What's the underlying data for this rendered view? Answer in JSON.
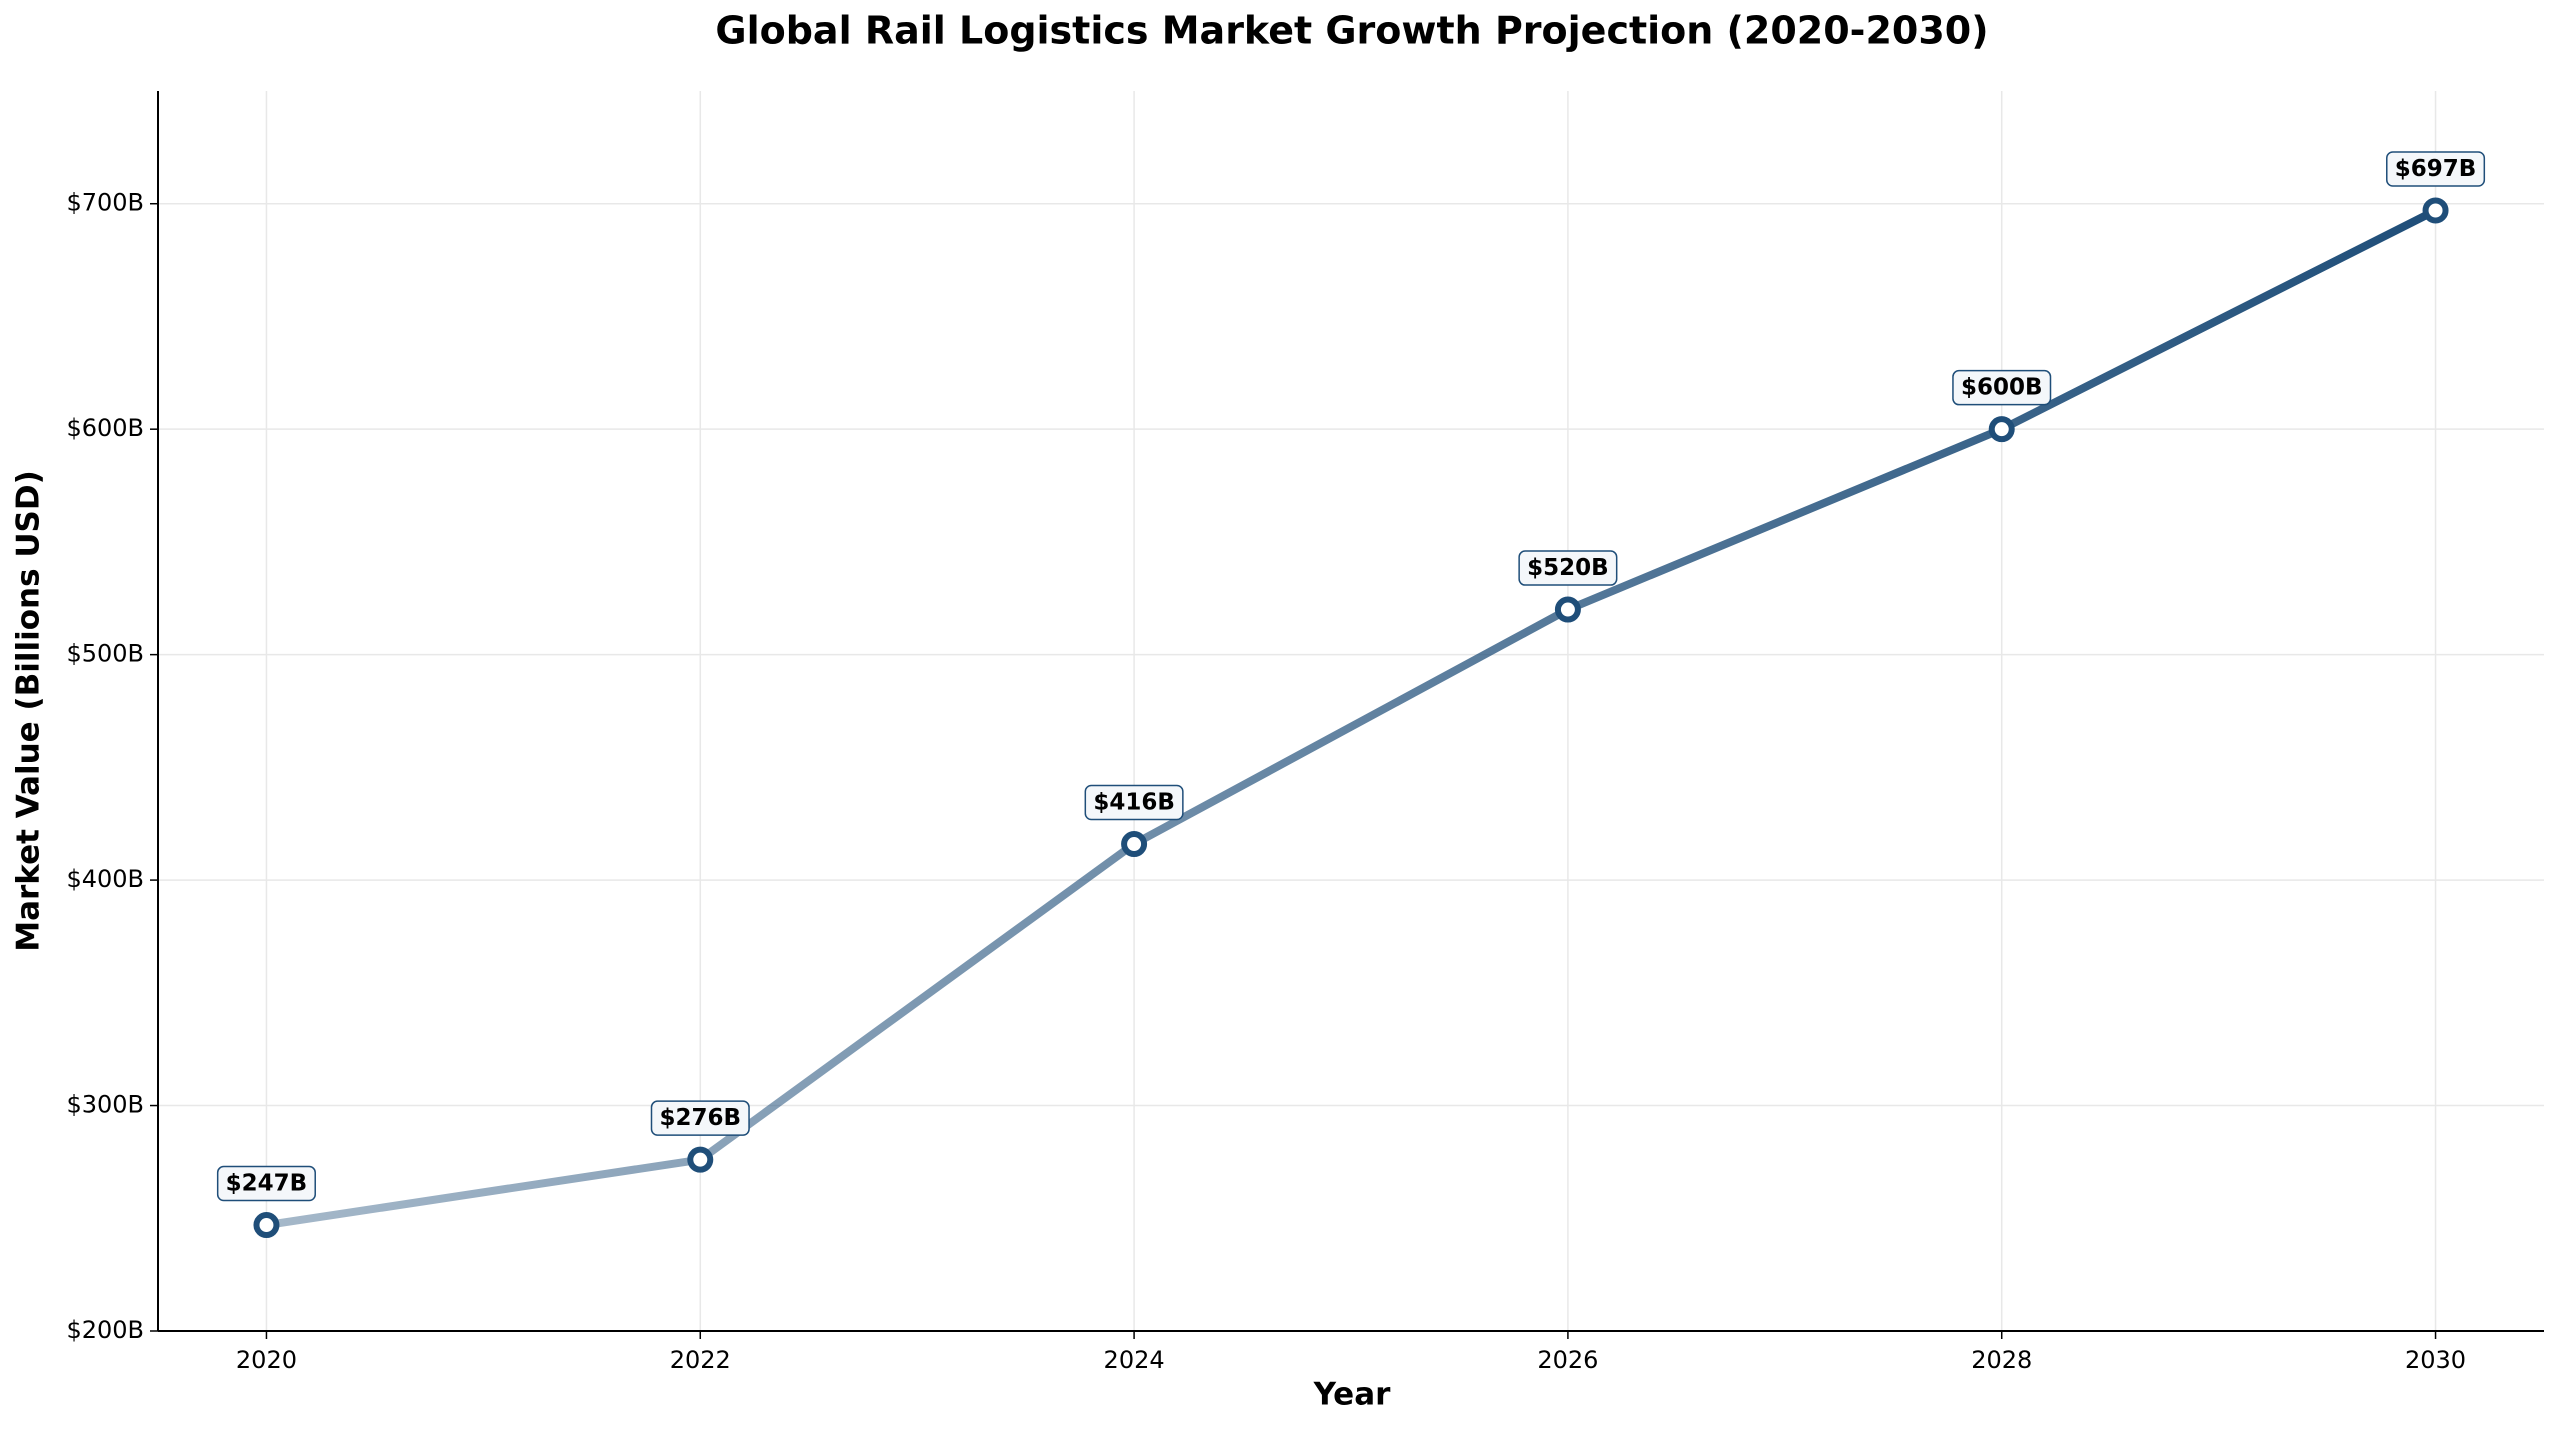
{
  "chart_data": {
    "type": "line",
    "title": "Global Rail Logistics Market Growth Projection (2020-2030)",
    "x_label": "Year",
    "y_label": "Market Value (Billions USD)",
    "x": [
      2020,
      2022,
      2024,
      2026,
      2028,
      2030
    ],
    "values": [
      247,
      276,
      416,
      520,
      600,
      697
    ],
    "value_labels": [
      "$247B",
      "$276B",
      "$416B",
      "$520B",
      "$600B",
      "$697B"
    ],
    "color": "#1f4e79",
    "xlim": [
      2019.5,
      2030.5
    ],
    "xticks": [
      2020,
      2022,
      2024,
      2026,
      2028,
      2030
    ],
    "ylim": [
      200,
      750
    ],
    "yticks": [
      {
        "value": 200,
        "label": "$200B"
      },
      {
        "value": 300,
        "label": "$300B"
      },
      {
        "value": 400,
        "label": "$400B"
      },
      {
        "value": 500,
        "label": "$500B"
      },
      {
        "value": 600,
        "label": "$600B"
      },
      {
        "value": 700,
        "label": "$700B"
      }
    ],
    "grid": true
  }
}
